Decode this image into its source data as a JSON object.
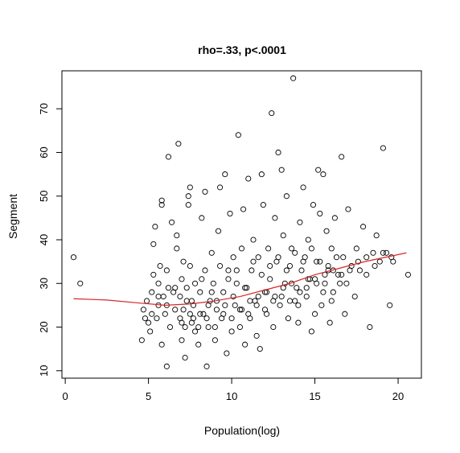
{
  "chart_data": {
    "type": "scatter",
    "title": "rho=.33, p<.0001",
    "xlabel": "Population(log)",
    "ylabel": "Segment",
    "xlim": [
      -0.2,
      21.4
    ],
    "ylim": [
      8.3,
      78.7
    ],
    "x_ticks": [
      "0",
      "5",
      "10",
      "15",
      "20"
    ],
    "y_ticks": [
      "10",
      "20",
      "30",
      "40",
      "50",
      "60",
      "70"
    ],
    "grid": false,
    "legend": "none",
    "colors": {
      "points": "#000000",
      "trend": "#d62728"
    },
    "series": [
      {
        "points": [
          [
            0.5,
            36
          ],
          [
            0.9,
            30
          ],
          [
            4.6,
            17
          ],
          [
            4.7,
            24
          ],
          [
            4.8,
            22
          ],
          [
            4.9,
            26
          ],
          [
            5.0,
            21
          ],
          [
            5.1,
            19
          ],
          [
            5.2,
            28
          ],
          [
            5.3,
            32
          ],
          [
            5.3,
            39
          ],
          [
            5.4,
            43
          ],
          [
            5.5,
            22
          ],
          [
            5.6,
            25
          ],
          [
            5.6,
            30
          ],
          [
            5.7,
            34
          ],
          [
            5.8,
            16
          ],
          [
            5.8,
            48
          ],
          [
            5.8,
            49
          ],
          [
            5.9,
            27
          ],
          [
            6.0,
            23
          ],
          [
            6.1,
            11
          ],
          [
            6.1,
            33
          ],
          [
            6.2,
            59
          ],
          [
            6.2,
            29
          ],
          [
            6.3,
            20
          ],
          [
            6.4,
            44
          ],
          [
            6.5,
            28
          ],
          [
            6.6,
            24
          ],
          [
            6.7,
            38
          ],
          [
            6.7,
            41
          ],
          [
            6.8,
            62
          ],
          [
            6.9,
            22
          ],
          [
            7.0,
            17
          ],
          [
            7.0,
            31
          ],
          [
            7.1,
            35
          ],
          [
            7.2,
            13
          ],
          [
            7.2,
            20
          ],
          [
            7.3,
            26
          ],
          [
            7.4,
            48
          ],
          [
            7.4,
            50
          ],
          [
            7.5,
            52
          ],
          [
            7.5,
            34
          ],
          [
            7.6,
            21
          ],
          [
            7.7,
            25
          ],
          [
            7.8,
            19
          ],
          [
            7.8,
            30
          ],
          [
            8.0,
            16
          ],
          [
            8.1,
            28
          ],
          [
            8.2,
            45
          ],
          [
            8.3,
            23
          ],
          [
            8.4,
            33
          ],
          [
            8.4,
            51
          ],
          [
            8.5,
            11
          ],
          [
            8.6,
            20
          ],
          [
            8.7,
            26
          ],
          [
            8.8,
            37
          ],
          [
            8.9,
            30
          ],
          [
            9.0,
            17
          ],
          [
            9.1,
            24
          ],
          [
            9.2,
            42
          ],
          [
            9.3,
            52
          ],
          [
            9.4,
            22
          ],
          [
            9.5,
            28
          ],
          [
            9.6,
            55
          ],
          [
            9.7,
            14
          ],
          [
            9.8,
            33
          ],
          [
            9.9,
            46
          ],
          [
            10.0,
            19
          ],
          [
            10.1,
            36
          ],
          [
            10.2,
            25
          ],
          [
            10.3,
            30
          ],
          [
            10.4,
            64
          ],
          [
            10.5,
            20
          ],
          [
            10.6,
            38
          ],
          [
            10.7,
            47
          ],
          [
            10.8,
            16
          ],
          [
            10.9,
            29
          ],
          [
            11.0,
            54
          ],
          [
            11.1,
            22
          ],
          [
            11.2,
            33
          ],
          [
            11.3,
            40
          ],
          [
            11.4,
            26
          ],
          [
            11.5,
            18
          ],
          [
            11.6,
            36
          ],
          [
            11.7,
            15
          ],
          [
            11.8,
            55
          ],
          [
            11.9,
            48
          ],
          [
            12.0,
            28
          ],
          [
            12.1,
            23
          ],
          [
            12.2,
            38
          ],
          [
            12.3,
            31
          ],
          [
            12.4,
            69
          ],
          [
            12.5,
            20
          ],
          [
            12.6,
            45
          ],
          [
            12.7,
            35
          ],
          [
            12.8,
            60
          ],
          [
            12.9,
            25
          ],
          [
            13.0,
            56
          ],
          [
            13.1,
            41
          ],
          [
            13.2,
            30
          ],
          [
            13.3,
            50
          ],
          [
            13.4,
            22
          ],
          [
            13.5,
            34
          ],
          [
            13.6,
            38
          ],
          [
            13.7,
            77
          ],
          [
            13.8,
            26
          ],
          [
            13.9,
            29
          ],
          [
            14.0,
            21
          ],
          [
            14.1,
            44
          ],
          [
            14.2,
            33
          ],
          [
            14.3,
            52
          ],
          [
            14.4,
            36
          ],
          [
            14.5,
            27
          ],
          [
            14.6,
            40
          ],
          [
            14.7,
            31
          ],
          [
            14.8,
            19
          ],
          [
            14.9,
            48
          ],
          [
            15.0,
            23
          ],
          [
            15.1,
            35
          ],
          [
            15.2,
            56
          ],
          [
            15.3,
            46
          ],
          [
            15.4,
            25
          ],
          [
            15.5,
            55
          ],
          [
            15.6,
            30
          ],
          [
            15.7,
            42
          ],
          [
            15.8,
            33
          ],
          [
            15.9,
            21
          ],
          [
            16.0,
            38
          ],
          [
            16.1,
            28
          ],
          [
            16.2,
            45
          ],
          [
            16.4,
            32
          ],
          [
            16.6,
            59
          ],
          [
            16.7,
            36
          ],
          [
            16.8,
            23
          ],
          [
            16.9,
            30
          ],
          [
            17.0,
            47
          ],
          [
            17.2,
            34
          ],
          [
            17.4,
            27
          ],
          [
            17.5,
            38
          ],
          [
            17.7,
            33
          ],
          [
            17.9,
            43
          ],
          [
            18.1,
            32
          ],
          [
            18.3,
            20
          ],
          [
            18.5,
            37
          ],
          [
            18.7,
            41
          ],
          [
            18.9,
            35
          ],
          [
            19.1,
            61
          ],
          [
            19.3,
            37
          ],
          [
            19.5,
            25
          ],
          [
            19.7,
            35
          ],
          [
            20.6,
            32
          ],
          [
            5.2,
            23
          ],
          [
            5.6,
            27
          ],
          [
            6.1,
            25
          ],
          [
            6.6,
            29
          ],
          [
            7.1,
            24
          ],
          [
            7.6,
            26
          ],
          [
            8.1,
            23
          ],
          [
            8.6,
            25
          ],
          [
            9.1,
            26
          ],
          [
            9.6,
            25
          ],
          [
            10.1,
            27
          ],
          [
            10.6,
            24
          ],
          [
            11.1,
            26
          ],
          [
            11.6,
            27
          ],
          [
            12.1,
            28
          ],
          [
            12.6,
            27
          ],
          [
            13.1,
            29
          ],
          [
            13.6,
            30
          ],
          [
            14.1,
            28
          ],
          [
            14.6,
            31
          ],
          [
            15.1,
            30
          ],
          [
            15.6,
            32
          ],
          [
            16.1,
            33
          ],
          [
            16.6,
            32
          ],
          [
            17.1,
            33
          ],
          [
            17.6,
            35
          ],
          [
            18.1,
            36
          ],
          [
            18.6,
            34
          ],
          [
            19.1,
            37
          ],
          [
            19.6,
            36
          ],
          [
            6.9,
            27
          ],
          [
            7.3,
            29
          ],
          [
            7.7,
            22
          ],
          [
            8.2,
            31
          ],
          [
            8.8,
            28
          ],
          [
            9.3,
            34
          ],
          [
            9.8,
            31
          ],
          [
            10.3,
            33
          ],
          [
            10.8,
            29
          ],
          [
            11.3,
            35
          ],
          [
            11.8,
            32
          ],
          [
            12.3,
            34
          ],
          [
            12.8,
            36
          ],
          [
            13.3,
            33
          ],
          [
            13.8,
            37
          ],
          [
            14.3,
            35
          ],
          [
            14.8,
            38
          ],
          [
            15.3,
            35
          ],
          [
            15.8,
            34
          ],
          [
            16.3,
            36
          ],
          [
            7.0,
            21
          ],
          [
            7.5,
            23
          ],
          [
            8.0,
            20
          ],
          [
            8.5,
            22
          ],
          [
            9.0,
            20
          ],
          [
            9.5,
            23
          ],
          [
            10.0,
            22
          ],
          [
            10.5,
            24
          ],
          [
            11.0,
            23
          ],
          [
            11.5,
            25
          ],
          [
            12.0,
            24
          ],
          [
            12.5,
            26
          ],
          [
            13.0,
            27
          ],
          [
            13.5,
            26
          ],
          [
            14.0,
            25
          ],
          [
            14.5,
            29
          ],
          [
            15.0,
            31
          ],
          [
            15.5,
            28
          ],
          [
            16.0,
            26
          ],
          [
            16.5,
            30
          ]
        ]
      },
      {
        "line": [
          [
            0.5,
            26.5
          ],
          [
            2.5,
            26.2
          ],
          [
            4.5,
            25.5
          ],
          [
            6.0,
            25.0
          ],
          [
            7.5,
            25.3
          ],
          [
            9.0,
            26.0
          ],
          [
            10.5,
            27.0
          ],
          [
            12.0,
            28.5
          ],
          [
            13.5,
            30.0
          ],
          [
            15.0,
            32.0
          ],
          [
            16.5,
            33.5
          ],
          [
            18.0,
            35.0
          ],
          [
            20.5,
            37.0
          ]
        ]
      }
    ]
  }
}
